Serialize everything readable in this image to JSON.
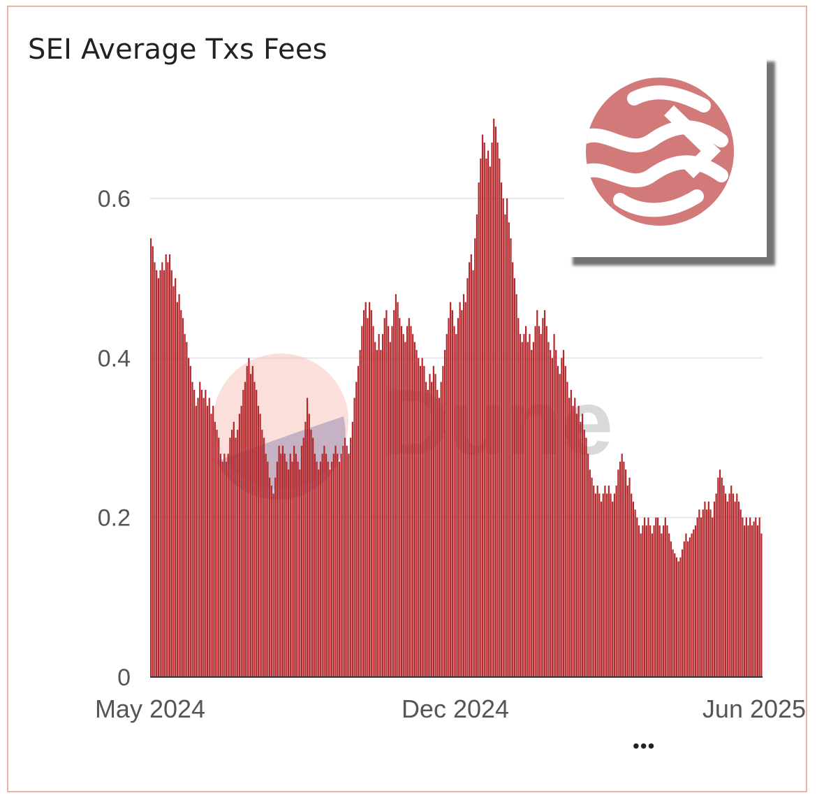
{
  "title": "SEI Average Txs Fees",
  "watermark": "Dune",
  "more_menu": "•••",
  "colors": {
    "bar": "#b3282c",
    "grid": "#e6e6ec",
    "axis_text": "#555555",
    "logo": "#d27a79",
    "card_border": "#eab3a6"
  },
  "icons": {
    "logo": "sei-logo-icon",
    "more": "more-options-icon"
  },
  "chart_data": {
    "type": "bar",
    "title": "SEI Average Txs Fees",
    "xlabel": "",
    "ylabel": "",
    "x_range": [
      "2024-05-01",
      "2025-06-01"
    ],
    "x_ticks": [
      "May 2024",
      "Dec 2024",
      "Jun 2025"
    ],
    "y_ticks": [
      "0",
      "0.2",
      "0.4",
      "0.6"
    ],
    "ylim": [
      0,
      0.72
    ],
    "grid": true,
    "legend": "none",
    "series": [
      {
        "values_note_granularity": "daily",
        "values": [
          0.55,
          0.54,
          0.52,
          0.51,
          0.5,
          0.51,
          0.52,
          0.51,
          0.53,
          0.52,
          0.53,
          0.51,
          0.49,
          0.5,
          0.47,
          0.48,
          0.46,
          0.45,
          0.43,
          0.42,
          0.4,
          0.39,
          0.37,
          0.36,
          0.34,
          0.35,
          0.37,
          0.36,
          0.35,
          0.36,
          0.34,
          0.35,
          0.33,
          0.34,
          0.32,
          0.31,
          0.3,
          0.28,
          0.27,
          0.28,
          0.27,
          0.28,
          0.3,
          0.31,
          0.32,
          0.3,
          0.31,
          0.33,
          0.34,
          0.36,
          0.37,
          0.39,
          0.4,
          0.38,
          0.39,
          0.37,
          0.36,
          0.34,
          0.33,
          0.31,
          0.3,
          0.28,
          0.27,
          0.25,
          0.24,
          0.23,
          0.25,
          0.27,
          0.29,
          0.28,
          0.29,
          0.28,
          0.27,
          0.26,
          0.28,
          0.27,
          0.29,
          0.28,
          0.27,
          0.26,
          0.29,
          0.3,
          0.32,
          0.35,
          0.33,
          0.31,
          0.3,
          0.28,
          0.27,
          0.26,
          0.27,
          0.28,
          0.29,
          0.28,
          0.27,
          0.26,
          0.27,
          0.28,
          0.29,
          0.28,
          0.27,
          0.28,
          0.29,
          0.3,
          0.29,
          0.28,
          0.3,
          0.32,
          0.35,
          0.37,
          0.39,
          0.41,
          0.44,
          0.46,
          0.47,
          0.45,
          0.47,
          0.46,
          0.44,
          0.42,
          0.41,
          0.43,
          0.41,
          0.43,
          0.45,
          0.46,
          0.44,
          0.42,
          0.44,
          0.46,
          0.48,
          0.47,
          0.45,
          0.44,
          0.43,
          0.42,
          0.44,
          0.45,
          0.44,
          0.43,
          0.42,
          0.41,
          0.4,
          0.39,
          0.4,
          0.39,
          0.37,
          0.36,
          0.38,
          0.37,
          0.39,
          0.38,
          0.36,
          0.35,
          0.37,
          0.39,
          0.41,
          0.43,
          0.45,
          0.47,
          0.46,
          0.44,
          0.43,
          0.45,
          0.47,
          0.46,
          0.48,
          0.47,
          0.5,
          0.52,
          0.53,
          0.51,
          0.55,
          0.58,
          0.62,
          0.65,
          0.68,
          0.67,
          0.65,
          0.66,
          0.64,
          0.67,
          0.7,
          0.69,
          0.67,
          0.65,
          0.62,
          0.6,
          0.58,
          0.6,
          0.57,
          0.55,
          0.52,
          0.5,
          0.48,
          0.45,
          0.43,
          0.42,
          0.43,
          0.44,
          0.42,
          0.43,
          0.41,
          0.42,
          0.44,
          0.46,
          0.44,
          0.43,
          0.45,
          0.46,
          0.44,
          0.42,
          0.41,
          0.4,
          0.43,
          0.41,
          0.39,
          0.38,
          0.4,
          0.41,
          0.39,
          0.37,
          0.35,
          0.36,
          0.34,
          0.35,
          0.33,
          0.34,
          0.32,
          0.33,
          0.31,
          0.3,
          0.28,
          0.26,
          0.25,
          0.24,
          0.23,
          0.24,
          0.23,
          0.22,
          0.23,
          0.24,
          0.23,
          0.24,
          0.23,
          0.22,
          0.23,
          0.24,
          0.26,
          0.27,
          0.28,
          0.27,
          0.26,
          0.24,
          0.25,
          0.23,
          0.22,
          0.21,
          0.2,
          0.19,
          0.18,
          0.19,
          0.2,
          0.19,
          0.2,
          0.19,
          0.18,
          0.19,
          0.2,
          0.2,
          0.19,
          0.18,
          0.19,
          0.2,
          0.19,
          0.18,
          0.17,
          0.16,
          0.155,
          0.15,
          0.145,
          0.15,
          0.16,
          0.17,
          0.18,
          0.17,
          0.175,
          0.18,
          0.185,
          0.19,
          0.2,
          0.21,
          0.2,
          0.21,
          0.22,
          0.21,
          0.22,
          0.21,
          0.2,
          0.22,
          0.23,
          0.25,
          0.26,
          0.25,
          0.24,
          0.23,
          0.22,
          0.23,
          0.24,
          0.23,
          0.22,
          0.23,
          0.22,
          0.21,
          0.2,
          0.19,
          0.2,
          0.19,
          0.2,
          0.19,
          0.195,
          0.2,
          0.19,
          0.2,
          0.18
        ]
      }
    ]
  }
}
